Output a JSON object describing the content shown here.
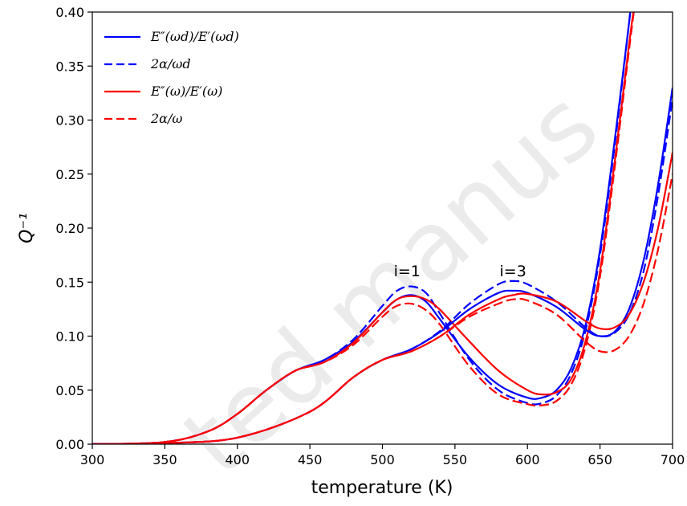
{
  "chart_data": {
    "type": "line",
    "title": "",
    "xlabel": "temperature (K)",
    "ylabel": "Q⁻¹",
    "xlim": [
      300,
      700
    ],
    "ylim": [
      0,
      0.4
    ],
    "xticks": [
      "300",
      "350",
      "400",
      "450",
      "500",
      "550",
      "600",
      "650",
      "700"
    ],
    "yticks": [
      "0.00",
      "0.05",
      "0.10",
      "0.15",
      "0.20",
      "0.25",
      "0.30",
      "0.35",
      "0.40"
    ],
    "grid": false,
    "legend_position": "top-left",
    "legend": [
      {
        "label": "E″(ωd)/E′(ωd)",
        "color": "#0000ff",
        "dash": "solid"
      },
      {
        "label": "2α/ωd",
        "color": "#0000ff",
        "dash": "dashed"
      },
      {
        "label": "E″(ω)/E′(ω)",
        "color": "#ff0000",
        "dash": "solid"
      },
      {
        "label": "2α/ω",
        "color": "#ff0000",
        "dash": "dashed"
      }
    ],
    "annotations": [
      {
        "text": "i=1",
        "x": 517,
        "y": 0.16
      },
      {
        "text": "i=3",
        "x": 590,
        "y": 0.16
      }
    ],
    "series": [
      {
        "color": "#0000ff",
        "dash": "solid",
        "x": [
          300,
          350,
          380,
          400,
          420,
          440,
          460,
          480,
          500,
          510,
          520,
          530,
          540,
          560,
          580,
          600,
          610,
          620,
          630,
          640,
          650,
          660,
          670,
          675
        ],
        "y": [
          0,
          0.002,
          0.012,
          0.028,
          0.05,
          0.068,
          0.078,
          0.095,
          0.122,
          0.134,
          0.138,
          0.132,
          0.115,
          0.08,
          0.055,
          0.043,
          0.043,
          0.05,
          0.07,
          0.11,
          0.18,
          0.28,
          0.39,
          0.45
        ]
      },
      {
        "color": "#0000ff",
        "dash": "dashed",
        "x": [
          300,
          350,
          380,
          400,
          420,
          440,
          460,
          480,
          500,
          510,
          520,
          530,
          540,
          560,
          580,
          600,
          610,
          620,
          630,
          640,
          650,
          660,
          670,
          675
        ],
        "y": [
          0,
          0.002,
          0.012,
          0.028,
          0.05,
          0.068,
          0.078,
          0.097,
          0.128,
          0.142,
          0.146,
          0.14,
          0.12,
          0.078,
          0.05,
          0.038,
          0.038,
          0.045,
          0.065,
          0.105,
          0.175,
          0.275,
          0.39,
          0.45
        ]
      },
      {
        "color": "#ff0000",
        "dash": "solid",
        "x": [
          300,
          350,
          380,
          400,
          420,
          440,
          460,
          480,
          500,
          510,
          520,
          530,
          540,
          560,
          580,
          600,
          610,
          620,
          630,
          640,
          650,
          660,
          670,
          678
        ],
        "y": [
          0,
          0.002,
          0.012,
          0.028,
          0.05,
          0.068,
          0.076,
          0.094,
          0.122,
          0.134,
          0.137,
          0.134,
          0.124,
          0.095,
          0.068,
          0.05,
          0.046,
          0.048,
          0.06,
          0.095,
          0.16,
          0.26,
          0.37,
          0.45
        ]
      },
      {
        "color": "#ff0000",
        "dash": "dashed",
        "x": [
          300,
          350,
          380,
          400,
          420,
          440,
          460,
          480,
          500,
          510,
          520,
          530,
          540,
          560,
          580,
          600,
          610,
          620,
          630,
          640,
          650,
          660,
          670,
          678
        ],
        "y": [
          0,
          0.002,
          0.012,
          0.028,
          0.05,
          0.068,
          0.076,
          0.092,
          0.118,
          0.128,
          0.13,
          0.124,
          0.11,
          0.072,
          0.046,
          0.037,
          0.036,
          0.04,
          0.055,
          0.09,
          0.155,
          0.255,
          0.365,
          0.45
        ]
      },
      {
        "color": "#0000ff",
        "dash": "solid",
        "x": [
          300,
          350,
          400,
          450,
          480,
          500,
          520,
          540,
          560,
          580,
          590,
          600,
          620,
          640,
          650,
          660,
          670,
          680,
          690,
          700
        ],
        "y": [
          0,
          0.001,
          0.006,
          0.03,
          0.062,
          0.078,
          0.088,
          0.104,
          0.125,
          0.14,
          0.142,
          0.14,
          0.127,
          0.106,
          0.1,
          0.104,
          0.125,
          0.17,
          0.24,
          0.33
        ]
      },
      {
        "color": "#0000ff",
        "dash": "dashed",
        "x": [
          300,
          350,
          400,
          450,
          480,
          500,
          520,
          540,
          560,
          580,
          590,
          600,
          620,
          640,
          650,
          660,
          670,
          680,
          690,
          700
        ],
        "y": [
          0,
          0.001,
          0.006,
          0.03,
          0.062,
          0.078,
          0.088,
          0.105,
          0.13,
          0.148,
          0.151,
          0.148,
          0.132,
          0.108,
          0.1,
          0.103,
          0.12,
          0.16,
          0.23,
          0.32
        ]
      },
      {
        "color": "#ff0000",
        "dash": "solid",
        "x": [
          300,
          350,
          400,
          450,
          480,
          500,
          520,
          540,
          560,
          580,
          590,
          600,
          620,
          640,
          650,
          660,
          670,
          680,
          690,
          700
        ],
        "y": [
          0,
          0.001,
          0.006,
          0.03,
          0.062,
          0.078,
          0.086,
          0.1,
          0.12,
          0.134,
          0.138,
          0.139,
          0.132,
          0.114,
          0.107,
          0.108,
          0.12,
          0.15,
          0.2,
          0.27
        ]
      },
      {
        "color": "#ff0000",
        "dash": "dashed",
        "x": [
          300,
          350,
          400,
          450,
          480,
          500,
          520,
          540,
          560,
          580,
          590,
          600,
          620,
          640,
          650,
          660,
          670,
          680,
          690,
          700
        ],
        "y": [
          0,
          0.001,
          0.006,
          0.03,
          0.062,
          0.078,
          0.086,
          0.1,
          0.118,
          0.13,
          0.134,
          0.133,
          0.12,
          0.095,
          0.086,
          0.087,
          0.1,
          0.13,
          0.18,
          0.25
        ]
      }
    ]
  }
}
